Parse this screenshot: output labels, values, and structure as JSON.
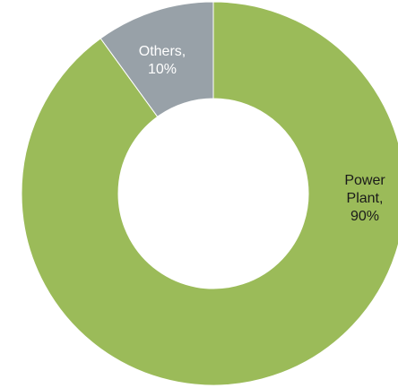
{
  "chart_data": {
    "type": "pie",
    "variant": "donut",
    "title": "",
    "slices": [
      {
        "label": "Power Plant",
        "value": 90,
        "display": "Power\nPlant,\n90%",
        "color": "#9bbb59"
      },
      {
        "label": "Others",
        "value": 10,
        "display": "Others,\n10%",
        "color": "#98a1a8"
      }
    ],
    "legend": "none"
  }
}
